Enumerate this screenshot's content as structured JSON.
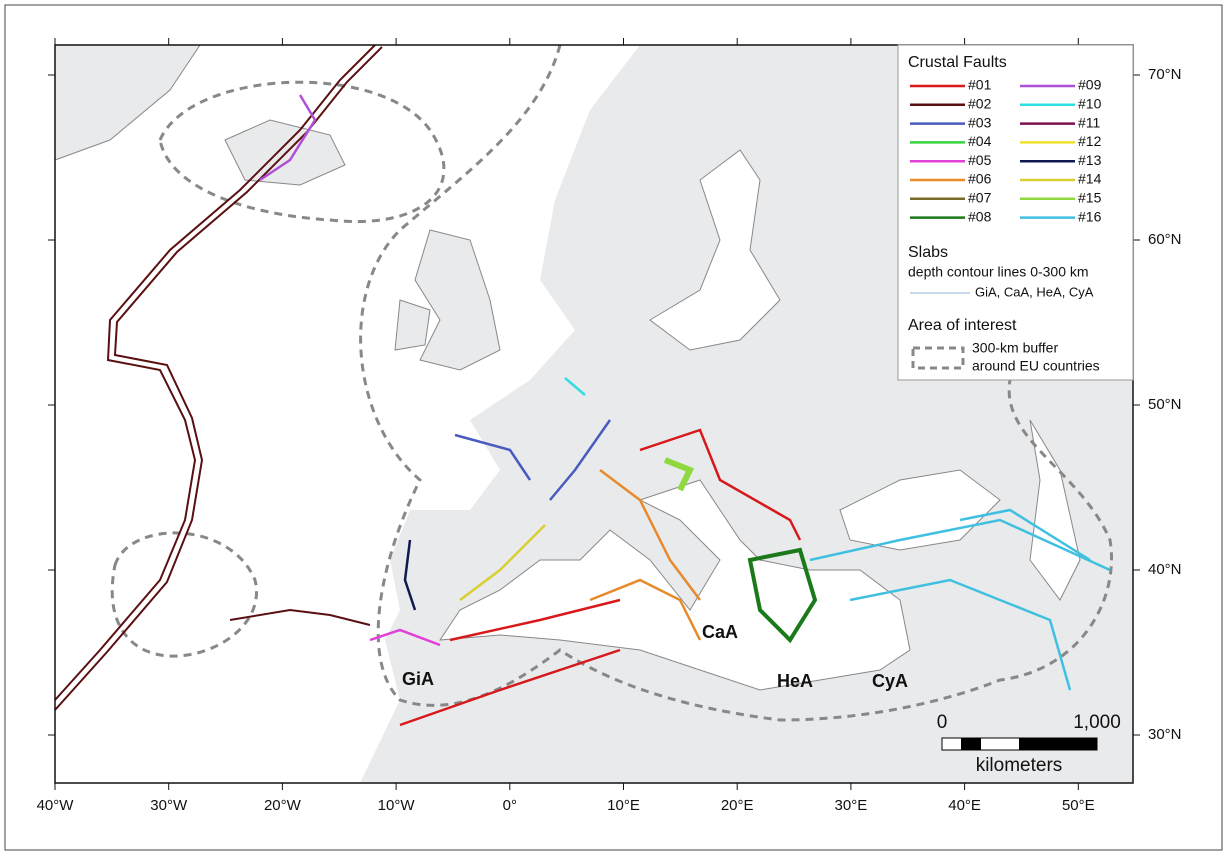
{
  "map": {
    "x_ticks": [
      "40°W",
      "30°W",
      "20°W",
      "10°W",
      "0°",
      "10°E",
      "20°E",
      "30°E",
      "40°E",
      "50°E"
    ],
    "y_ticks": [
      "70°N",
      "60°N",
      "50°N",
      "40°N",
      "30°N"
    ],
    "legend": {
      "faults_title": "Crustal Faults",
      "faults": [
        {
          "label": "#01",
          "color": "#d7191c"
        },
        {
          "label": "#02",
          "color": "#5a0f10"
        },
        {
          "label": "#03",
          "color": "#4a5bc0"
        },
        {
          "label": "#04",
          "color": "#35d43a"
        },
        {
          "label": "#05",
          "color": "#e040d8"
        },
        {
          "label": "#06",
          "color": "#e8892a"
        },
        {
          "label": "#07",
          "color": "#7a6a2a"
        },
        {
          "label": "#08",
          "color": "#1a7a1a"
        },
        {
          "label": "#09",
          "color": "#b050d8"
        },
        {
          "label": "#10",
          "color": "#30dde0"
        },
        {
          "label": "#11",
          "color": "#7a1050"
        },
        {
          "label": "#12",
          "color": "#f0e030"
        },
        {
          "label": "#13",
          "color": "#101a50"
        },
        {
          "label": "#14",
          "color": "#d8d030"
        },
        {
          "label": "#15",
          "color": "#90d840"
        },
        {
          "label": "#16",
          "color": "#40c0e0"
        }
      ],
      "slabs_title": "Slabs",
      "slabs_subtitle": "depth contour lines 0-300 km",
      "slabs_entry": "GiA, CaA, HeA, CyA",
      "area_title": "Area of interest",
      "area_entry": [
        "300-km buffer",
        "around EU countries"
      ]
    },
    "labels": [
      "GiA",
      "CaA",
      "HeA",
      "CyA"
    ],
    "scale_bar": {
      "ticks": [
        "0",
        "1,000"
      ],
      "unit": "kilometers"
    }
  }
}
